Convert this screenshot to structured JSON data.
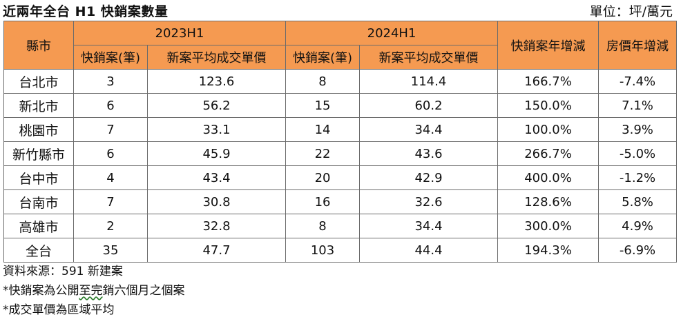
{
  "title": "近兩年全台 H1 快銷案數量",
  "unit_label": "單位：坪/萬元",
  "headers": {
    "county": "縣市",
    "period1": "2023H1",
    "period2": "2024H1",
    "fast_sales_yoy": "快銷案年增減",
    "price_yoy": "房價年增減",
    "sub_count": "快銷案(筆)",
    "sub_price": "新案平均成交單價"
  },
  "rows": [
    {
      "city": "台北市",
      "c2023": "3",
      "p2023": "123.6",
      "c2024": "8",
      "p2024": "114.4",
      "yoy": "166.7%",
      "price_yoy": "-7.4%"
    },
    {
      "city": "新北市",
      "c2023": "6",
      "p2023": "56.2",
      "c2024": "15",
      "p2024": "60.2",
      "yoy": "150.0%",
      "price_yoy": "7.1%"
    },
    {
      "city": "桃園市",
      "c2023": "7",
      "p2023": "33.1",
      "c2024": "14",
      "p2024": "34.4",
      "yoy": "100.0%",
      "price_yoy": "3.9%"
    },
    {
      "city": "新竹縣市",
      "c2023": "6",
      "p2023": "45.9",
      "c2024": "22",
      "p2024": "43.6",
      "yoy": "266.7%",
      "price_yoy": "-5.0%"
    },
    {
      "city": "台中市",
      "c2023": "4",
      "p2023": "43.4",
      "c2024": "20",
      "p2024": "42.9",
      "yoy": "400.0%",
      "price_yoy": "-1.2%"
    },
    {
      "city": "台南市",
      "c2023": "7",
      "p2023": "30.8",
      "c2024": "16",
      "p2024": "32.6",
      "yoy": "128.6%",
      "price_yoy": "5.8%"
    },
    {
      "city": "高雄市",
      "c2023": "2",
      "p2023": "32.8",
      "c2024": "8",
      "p2024": "34.4",
      "yoy": "300.0%",
      "price_yoy": "4.9%"
    },
    {
      "city": "全台",
      "c2023": "35",
      "p2023": "47.7",
      "c2024": "103",
      "p2024": "44.4",
      "yoy": "194.3%",
      "price_yoy": "-6.9%"
    }
  ],
  "notes": {
    "source": "資料來源：591 新建案",
    "note1_a": "*快銷案為公開",
    "note1_b": "至完",
    "note1_c": "銷六個月之個案",
    "note2": "*成交單價為區域平均"
  },
  "colors": {
    "header_bg": "#f59a51",
    "border": "#6b6b6b"
  }
}
